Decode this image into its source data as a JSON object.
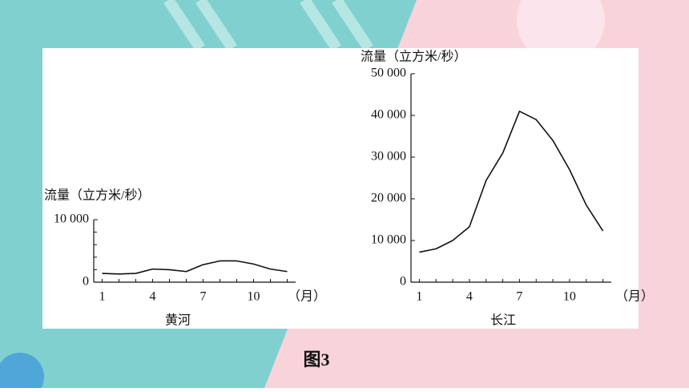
{
  "caption": "图3",
  "chart_data": [
    {
      "type": "line",
      "title": "黄河",
      "y_label": "流量（立方米/秒）",
      "x_label": "（月）",
      "x": [
        1,
        2,
        3,
        4,
        5,
        6,
        7,
        8,
        9,
        10,
        11,
        12
      ],
      "xlim": [
        0.5,
        12.5
      ],
      "xticks": [
        1,
        4,
        7,
        10
      ],
      "ylim": [
        0,
        10000
      ],
      "yticks": [
        0,
        {
          "value": 10000,
          "label": "10 000"
        }
      ],
      "minor_yticks": [
        2000,
        4000,
        6000,
        8000
      ],
      "series": [
        {
          "name": "黄河",
          "color": "#111111",
          "values": [
            1400,
            1300,
            1400,
            2100,
            2000,
            1700,
            2800,
            3400,
            3400,
            2900,
            2100,
            1700
          ]
        }
      ]
    },
    {
      "type": "line",
      "title": "长江",
      "y_label": "流量（立方米/秒）",
      "x_label": "（月）",
      "x": [
        1,
        2,
        3,
        4,
        5,
        6,
        7,
        8,
        9,
        10,
        11,
        12
      ],
      "xlim": [
        0.5,
        12.5
      ],
      "xticks": [
        1,
        4,
        7,
        10
      ],
      "ylim": [
        0,
        50000
      ],
      "yticks": [
        0,
        {
          "value": 10000,
          "label": "10 000"
        },
        {
          "value": 20000,
          "label": "20 000"
        },
        {
          "value": 30000,
          "label": "30 000"
        },
        {
          "value": 40000,
          "label": "40 000"
        },
        {
          "value": 50000,
          "label": "50 000"
        }
      ],
      "series": [
        {
          "name": "长江",
          "color": "#111111",
          "values": [
            7200,
            8000,
            10000,
            13300,
            24400,
            31000,
            41000,
            39000,
            34000,
            27000,
            18500,
            12300
          ]
        }
      ]
    }
  ]
}
